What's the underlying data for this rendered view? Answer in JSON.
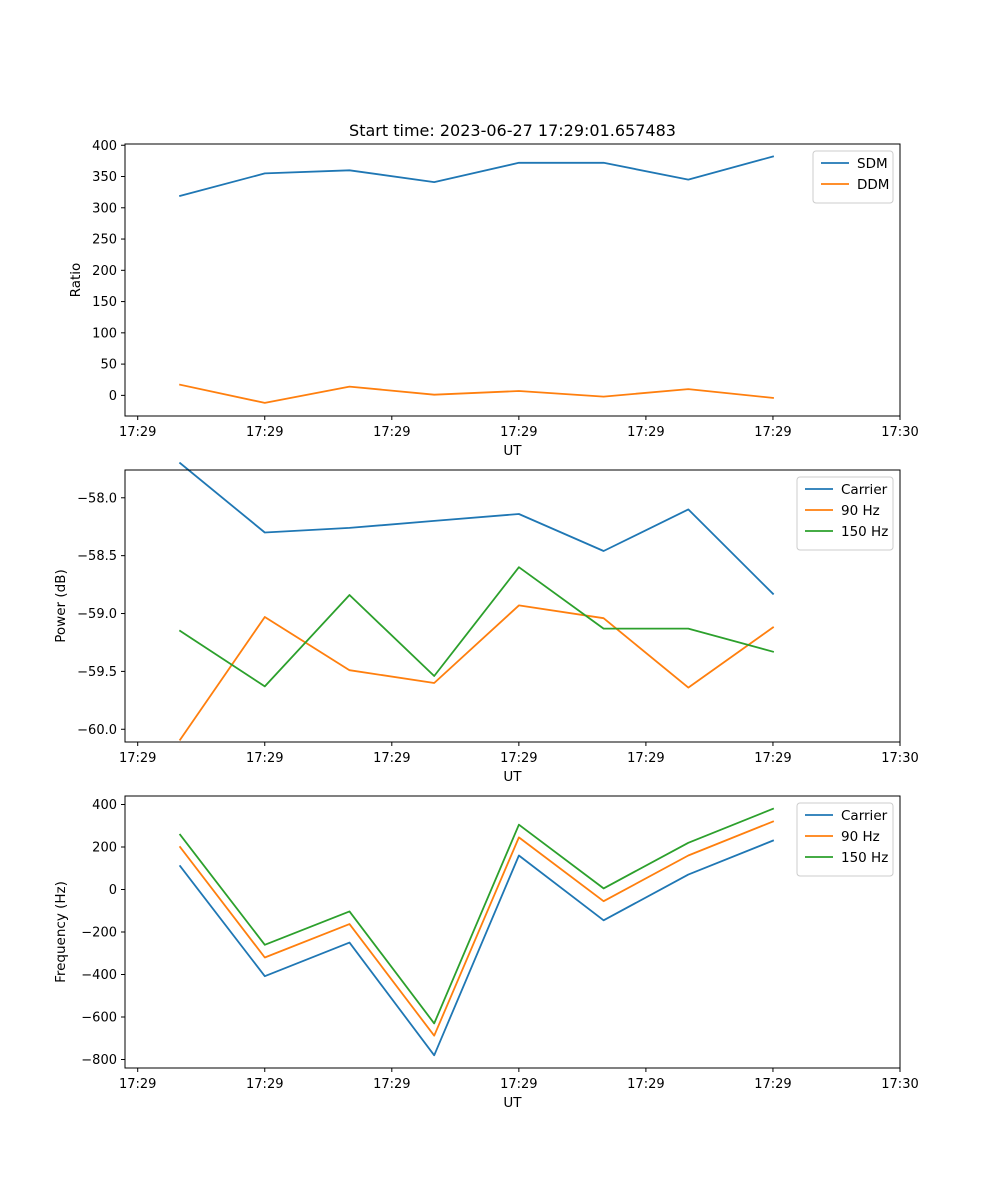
{
  "chart_data": [
    {
      "type": "line",
      "title": "Start time: 2023-06-27 17:29:01.657483",
      "xlabel": "UT",
      "ylabel": "Ratio",
      "x": [
        1,
        2,
        3,
        4,
        5,
        6,
        7,
        8
      ],
      "xlim": [
        0.35,
        9.5
      ],
      "x_ticks": [
        0.5,
        2,
        3.5,
        5,
        6.5,
        8,
        9.5
      ],
      "x_tick_labels": [
        "17:29",
        "17:29",
        "17:29",
        "17:29",
        "17:29",
        "17:29",
        "17:30"
      ],
      "ylim": [
        -33,
        402
      ],
      "y_ticks": [
        0,
        50,
        100,
        150,
        200,
        250,
        300,
        350,
        400
      ],
      "y_tick_labels": [
        "0",
        "50",
        "100",
        "150",
        "200",
        "250",
        "300",
        "350",
        "400"
      ],
      "legend": "top-right",
      "series": [
        {
          "name": "SDM",
          "color": "#1f77b4",
          "values": [
            319,
            355,
            360,
            341,
            372,
            372,
            345,
            382
          ]
        },
        {
          "name": "DDM",
          "color": "#ff7f0e",
          "values": [
            17,
            -12,
            14,
            1,
            7,
            -2,
            10,
            -4
          ]
        }
      ]
    },
    {
      "type": "line",
      "title": "",
      "xlabel": "UT",
      "ylabel": "Power (dB)",
      "x": [
        1,
        2,
        3,
        4,
        5,
        6,
        7,
        8
      ],
      "xlim": [
        0.35,
        9.5
      ],
      "x_ticks": [
        0.5,
        2,
        3.5,
        5,
        6.5,
        8,
        9.5
      ],
      "x_tick_labels": [
        "17:29",
        "17:29",
        "17:29",
        "17:29",
        "17:29",
        "17:29",
        "17:30"
      ],
      "ylim": [
        -60.11,
        -57.76
      ],
      "y_ticks": [
        -60.0,
        -59.5,
        -59.0,
        -58.5,
        -58.0
      ],
      "y_tick_labels": [
        "−60.0",
        "−59.5",
        "−59.0",
        "−58.5",
        "−58.0"
      ],
      "legend": "top-right",
      "series": [
        {
          "name": "Carrier",
          "color": "#1f77b4",
          "values": [
            -57.7,
            -58.3,
            -58.26,
            -58.2,
            -58.14,
            -58.46,
            -58.1,
            -58.83
          ]
        },
        {
          "name": "90 Hz",
          "color": "#ff7f0e",
          "values": [
            -60.09,
            -59.03,
            -59.49,
            -59.6,
            -58.93,
            -59.04,
            -59.64,
            -59.12
          ]
        },
        {
          "name": "150 Hz",
          "color": "#2ca02c",
          "values": [
            -59.15,
            -59.63,
            -58.84,
            -59.54,
            -58.6,
            -59.13,
            -59.13,
            -59.33
          ]
        }
      ]
    },
    {
      "type": "line",
      "title": "",
      "xlabel": "UT",
      "ylabel": "Frequency (Hz)",
      "x": [
        1,
        2,
        3,
        4,
        5,
        6,
        7,
        8
      ],
      "xlim": [
        0.35,
        9.5
      ],
      "x_ticks": [
        0.5,
        2,
        3.5,
        5,
        6.5,
        8,
        9.5
      ],
      "x_tick_labels": [
        "17:29",
        "17:29",
        "17:29",
        "17:29",
        "17:29",
        "17:29",
        "17:30"
      ],
      "ylim": [
        -840,
        440
      ],
      "y_ticks": [
        -800,
        -600,
        -400,
        -200,
        0,
        200,
        400
      ],
      "y_tick_labels": [
        "−800",
        "−600",
        "−400",
        "−200",
        "0",
        "200",
        "400"
      ],
      "legend": "top-right",
      "series": [
        {
          "name": "Carrier",
          "color": "#1f77b4",
          "values": [
            110,
            -408,
            -250,
            -780,
            160,
            -145,
            70,
            230
          ]
        },
        {
          "name": "90 Hz",
          "color": "#ff7f0e",
          "values": [
            200,
            -320,
            -163,
            -688,
            245,
            -55,
            160,
            320
          ]
        },
        {
          "name": "150 Hz",
          "color": "#2ca02c",
          "values": [
            258,
            -260,
            -103,
            -630,
            305,
            5,
            220,
            380
          ]
        }
      ]
    }
  ]
}
